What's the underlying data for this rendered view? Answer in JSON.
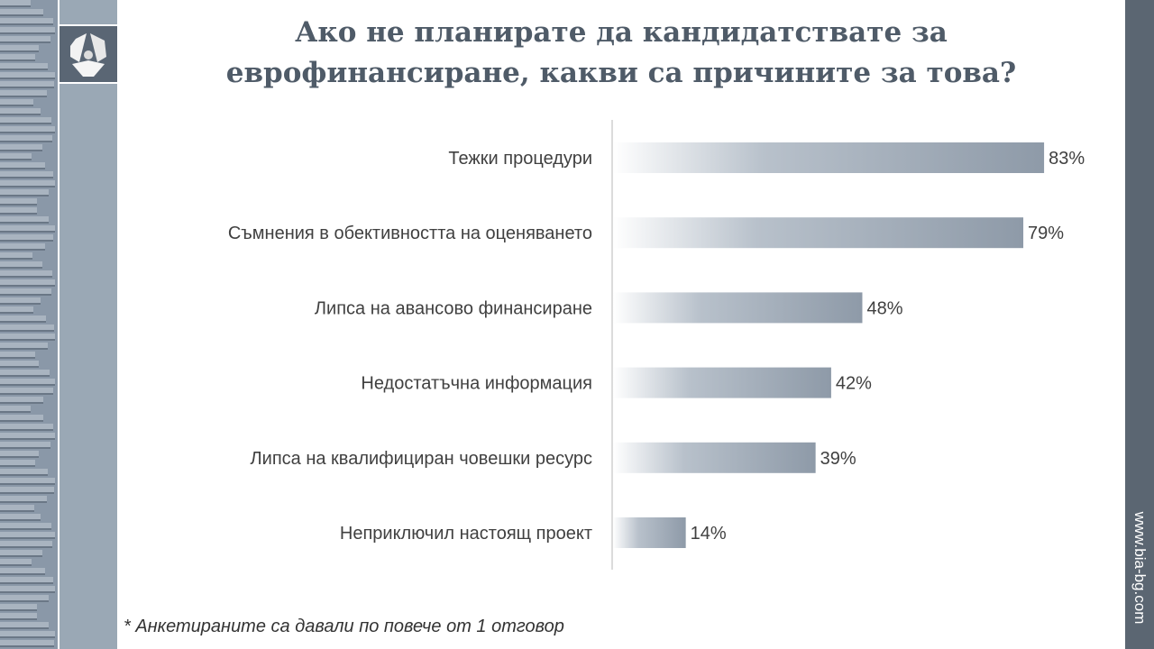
{
  "title_line1": "Ако не планирате да кандидатствате за",
  "title_line2": "еврофинансиране, какви са причините за това?",
  "footnote": "* Анкетираните са давали по повече от 1 отговор",
  "url": "www.bia-bg.com",
  "logo_name": "БИА",
  "colors": {
    "bar_end": "#8e9aa8",
    "bar_start": "#ffffff",
    "sidebar": "#5b6672",
    "title": "#4f5b68"
  },
  "chart_data": {
    "type": "bar",
    "orientation": "horizontal",
    "title": "Ако не планирате да кандидатствате за еврофинансиране, какви са причините за това?",
    "categories": [
      "Тежки процедури",
      "Съмнения в обективността на оценяването",
      "Липса на авансово финансиране",
      "Недостатъчна информация",
      "Липса на квалифициран човешки ресурс",
      "Неприключил настоящ проект"
    ],
    "values": [
      83,
      79,
      48,
      42,
      39,
      14
    ],
    "labels": [
      "83%",
      "79%",
      "48%",
      "42%",
      "39%",
      "14%"
    ],
    "unit": "%",
    "xlim": [
      0,
      100
    ],
    "grid": false
  }
}
